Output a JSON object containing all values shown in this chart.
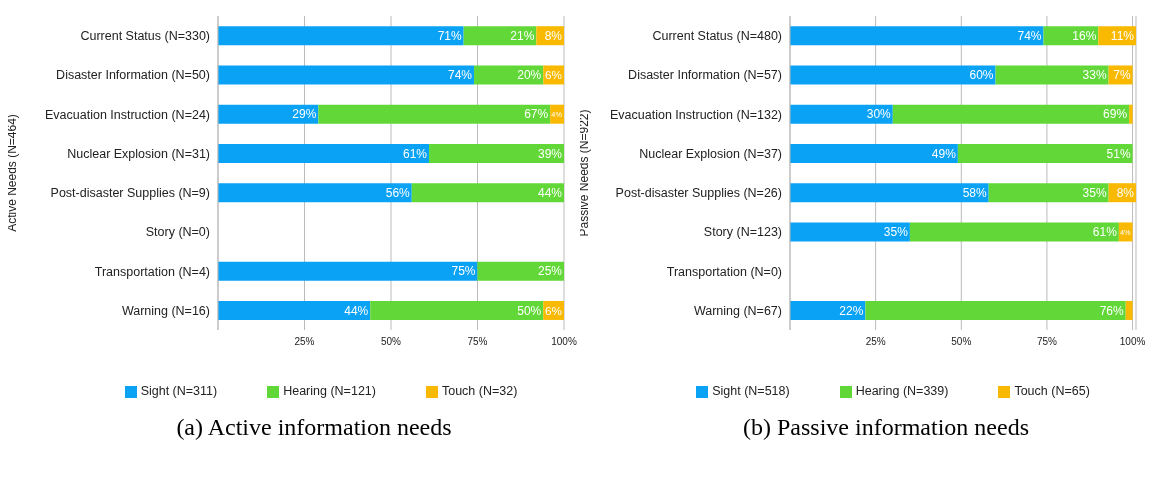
{
  "chart_data": [
    {
      "type": "bar",
      "orientation": "horizontal",
      "stacked": true,
      "ylabel": "Active Needs (N=464)",
      "annotations": [
        "(a) Active information needs"
      ],
      "categories": [
        "Current Status (N=330)",
        "Disaster Information (N=50)",
        "Evacuation Instruction (N=24)",
        "Nuclear Explosion (N=31)",
        "Post-disaster Supplies (N=9)",
        "Story (N=0)",
        "Transportation (N=4)",
        "Warning (N=16)"
      ],
      "series": [
        {
          "name": "Sight (N=311)",
          "color": "#0aa2f5",
          "values": [
            71,
            74,
            29,
            61,
            56,
            null,
            75,
            44
          ],
          "value_labels": [
            "71%",
            "74%",
            "29%",
            "61%",
            "56%",
            null,
            "75%",
            "44%"
          ]
        },
        {
          "name": "Hearing (N=121)",
          "color": "#62d838",
          "values": [
            21,
            20,
            67,
            39,
            44,
            null,
            25,
            50
          ],
          "value_labels": [
            "21%",
            "20%",
            "67%",
            "39%",
            "44%",
            null,
            "25%",
            "50%"
          ]
        },
        {
          "name": "Touch (N=32)",
          "color": "#f8b900",
          "values": [
            8,
            6,
            4,
            null,
            null,
            null,
            null,
            6
          ],
          "value_labels": [
            "8%",
            "6%",
            "4%",
            null,
            null,
            null,
            null,
            "6%"
          ]
        }
      ],
      "xlim": [
        0,
        100
      ],
      "xticks": [
        {
          "value": 25,
          "label": "25%"
        },
        {
          "value": 50,
          "label": "50%"
        },
        {
          "value": 75,
          "label": "75%"
        },
        {
          "value": 100,
          "label": "100%"
        }
      ],
      "grid": "x",
      "legend": "bottom"
    },
    {
      "type": "bar",
      "orientation": "horizontal",
      "stacked": true,
      "ylabel": "Passive Needs (N=922)",
      "annotations": [
        "(b) Passive information needs"
      ],
      "categories": [
        "Current Status (N=480)",
        "Disaster Information (N=57)",
        "Evacuation Instruction (N=132)",
        "Nuclear Explosion (N=37)",
        "Post-disaster Supplies (N=26)",
        "Story (N=123)",
        "Transportation (N=0)",
        "Warning (N=67)"
      ],
      "series": [
        {
          "name": "Sight (N=518)",
          "color": "#0aa2f5",
          "values": [
            74,
            60,
            30,
            49,
            58,
            35,
            null,
            22
          ],
          "value_labels": [
            "74%",
            "60%",
            "30%",
            "49%",
            "58%",
            "35%",
            null,
            "22%"
          ]
        },
        {
          "name": "Hearing (N=339)",
          "color": "#62d838",
          "values": [
            16,
            33,
            69,
            51,
            35,
            61,
            null,
            76
          ],
          "value_labels": [
            "16%",
            "33%",
            "69%",
            "51%",
            "35%",
            "61%",
            null,
            "76%"
          ]
        },
        {
          "name": "Touch (N=65)",
          "color": "#f8b900",
          "values": [
            11,
            7,
            1,
            null,
            8,
            4,
            null,
            2
          ],
          "value_labels": [
            "11%",
            "7%",
            null,
            null,
            "8%",
            "4%",
            null,
            null
          ]
        }
      ],
      "xlim": [
        0,
        101
      ],
      "xticks": [
        {
          "value": 25,
          "label": "25%"
        },
        {
          "value": 50,
          "label": "50%"
        },
        {
          "value": 75,
          "label": "75%"
        },
        {
          "value": 100,
          "label": "100%"
        }
      ],
      "grid": "x",
      "legend": "bottom"
    }
  ]
}
